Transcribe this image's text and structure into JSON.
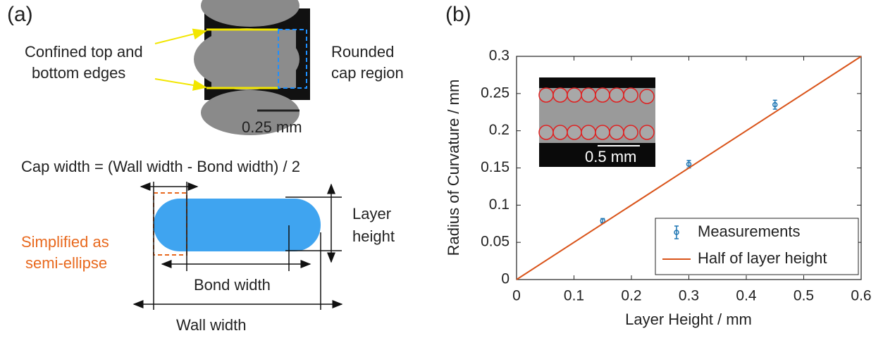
{
  "panel_a": {
    "label": "(a)",
    "edge_note": [
      "Confined top and",
      "bottom edges"
    ],
    "cap_note": [
      "Rounded",
      "cap region"
    ],
    "scale_bar": "0.25 mm",
    "formula": "Cap width = (Wall width - Bond width) / 2",
    "layer_height": [
      "Layer",
      "height"
    ],
    "ellipse_note": [
      "Simplified as",
      "semi-ellipse"
    ],
    "bond_width": "Bond width",
    "wall_width": "Wall width"
  },
  "chart_data": {
    "type": "scatter",
    "label": "(b)",
    "x_label": "Layer Height / mm",
    "y_label": "Radius of Curvature / mm",
    "inset_scale_bar": "0.5 mm",
    "xlim": [
      0,
      0.6
    ],
    "ylim": [
      0,
      0.3
    ],
    "xticks": [
      0,
      0.1,
      0.2,
      0.3,
      0.4,
      0.5,
      0.6
    ],
    "yticks": [
      0,
      0.05,
      0.1,
      0.15,
      0.2,
      0.25,
      0.3
    ],
    "legend": "lower right",
    "series": [
      {
        "name": "Measurements",
        "color": "#1f77b4",
        "x": [
          0.15,
          0.3,
          0.45
        ],
        "values": [
          0.079,
          0.155,
          0.235
        ],
        "errors": [
          0.003,
          0.005,
          0.006
        ]
      },
      {
        "name": "Half of layer height",
        "color": "#d95319",
        "x": [
          0,
          0.6
        ],
        "values": [
          0,
          0.3
        ]
      }
    ]
  }
}
